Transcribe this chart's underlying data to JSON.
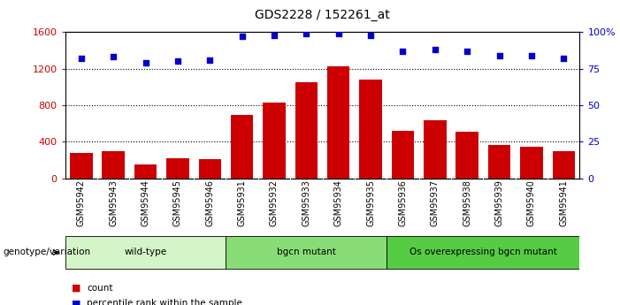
{
  "title": "GDS2228 / 152261_at",
  "samples": [
    "GSM95942",
    "GSM95943",
    "GSM95944",
    "GSM95945",
    "GSM95946",
    "GSM95931",
    "GSM95932",
    "GSM95933",
    "GSM95934",
    "GSM95935",
    "GSM95936",
    "GSM95937",
    "GSM95938",
    "GSM95939",
    "GSM95940",
    "GSM95941"
  ],
  "counts": [
    280,
    295,
    155,
    220,
    215,
    690,
    830,
    1050,
    1230,
    1080,
    520,
    640,
    510,
    370,
    350,
    300
  ],
  "percentile_ranks": [
    82,
    83,
    79,
    80,
    81,
    97,
    98,
    99,
    99,
    98,
    87,
    88,
    87,
    84,
    84,
    82
  ],
  "group_positions": [
    {
      "label": "wild-type",
      "start": 0,
      "end": 4,
      "color": "#d4f5c8"
    },
    {
      "label": "bgcn mutant",
      "start": 5,
      "end": 9,
      "color": "#88dd77"
    },
    {
      "label": "Os overexpressing bgcn mutant",
      "start": 10,
      "end": 15,
      "color": "#55cc44"
    }
  ],
  "bar_color": "#cc0000",
  "dot_color": "#0000cc",
  "ylim_left": [
    0,
    1600
  ],
  "ylim_right": [
    0,
    100
  ],
  "yticks_left": [
    0,
    400,
    800,
    1200,
    1600
  ],
  "yticks_right": [
    0,
    25,
    50,
    75,
    100
  ],
  "yticklabels_right": [
    "0",
    "25",
    "50",
    "75",
    "100%"
  ],
  "grid_values": [
    400,
    800,
    1200
  ],
  "legend_count_label": "count",
  "legend_pct_label": "percentile rank within the sample",
  "genotype_label": "genotype/variation",
  "xtick_bg": "#d8d8d8"
}
